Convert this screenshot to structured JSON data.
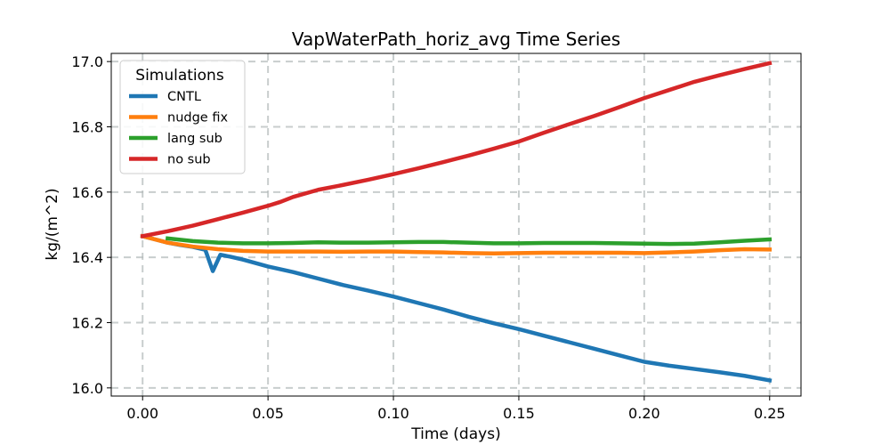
{
  "chart_data": {
    "type": "line",
    "title": "VapWaterPath_horiz_avg Time Series",
    "xlabel": "Time (days)",
    "ylabel": "kg/(m^2)",
    "xlim": [
      -0.0125,
      0.2625
    ],
    "ylim": [
      15.975,
      17.025
    ],
    "xticks": [
      0.0,
      0.05,
      0.1,
      0.15,
      0.2,
      0.25
    ],
    "xtick_labels": [
      "0.00",
      "0.05",
      "0.10",
      "0.15",
      "0.20",
      "0.25"
    ],
    "yticks": [
      16.0,
      16.2,
      16.4,
      16.6,
      16.8,
      17.0
    ],
    "ytick_labels": [
      "16.0",
      "16.2",
      "16.4",
      "16.6",
      "16.8",
      "17.0"
    ],
    "grid": true,
    "legend": {
      "title": "Simulations",
      "location": "upper-left"
    },
    "series": [
      {
        "name": "CNTL",
        "color": "#1f77b4",
        "x": [
          0.0,
          0.005,
          0.01,
          0.015,
          0.02,
          0.025,
          0.028,
          0.031,
          0.035,
          0.04,
          0.05,
          0.06,
          0.07,
          0.08,
          0.09,
          0.1,
          0.11,
          0.12,
          0.13,
          0.14,
          0.15,
          0.16,
          0.17,
          0.18,
          0.19,
          0.2,
          0.21,
          0.22,
          0.23,
          0.24,
          0.25
        ],
        "y": [
          16.465,
          16.455,
          16.445,
          16.438,
          16.432,
          16.423,
          16.358,
          16.408,
          16.402,
          16.393,
          16.372,
          16.355,
          16.335,
          16.315,
          16.298,
          16.28,
          16.26,
          16.24,
          16.218,
          16.198,
          16.18,
          16.16,
          16.14,
          16.12,
          16.1,
          16.08,
          16.068,
          16.058,
          16.048,
          16.037,
          16.023
        ]
      },
      {
        "name": "nudge fix",
        "color": "#ff7f0e",
        "x": [
          0.0,
          0.01,
          0.02,
          0.03,
          0.04,
          0.05,
          0.06,
          0.07,
          0.08,
          0.09,
          0.1,
          0.11,
          0.12,
          0.13,
          0.14,
          0.15,
          0.16,
          0.17,
          0.18,
          0.19,
          0.2,
          0.21,
          0.22,
          0.23,
          0.24,
          0.25
        ],
        "y": [
          16.465,
          16.445,
          16.433,
          16.425,
          16.42,
          16.418,
          16.418,
          16.418,
          16.417,
          16.418,
          16.418,
          16.416,
          16.415,
          16.413,
          16.412,
          16.413,
          16.414,
          16.414,
          16.414,
          16.414,
          16.413,
          16.415,
          16.418,
          16.422,
          16.425,
          16.424
        ]
      },
      {
        "name": "lang sub",
        "color": "#2ca02c",
        "x": [
          0.01,
          0.02,
          0.03,
          0.04,
          0.05,
          0.06,
          0.07,
          0.08,
          0.09,
          0.1,
          0.11,
          0.12,
          0.13,
          0.14,
          0.15,
          0.16,
          0.17,
          0.18,
          0.19,
          0.2,
          0.21,
          0.22,
          0.23,
          0.24,
          0.25
        ],
        "y": [
          16.458,
          16.45,
          16.445,
          16.443,
          16.443,
          16.444,
          16.446,
          16.445,
          16.445,
          16.446,
          16.447,
          16.447,
          16.445,
          16.443,
          16.443,
          16.444,
          16.444,
          16.444,
          16.443,
          16.442,
          16.441,
          16.442,
          16.446,
          16.451,
          16.455
        ]
      },
      {
        "name": "no sub",
        "color": "#d62728",
        "x": [
          0.0,
          0.01,
          0.02,
          0.03,
          0.04,
          0.05,
          0.055,
          0.06,
          0.07,
          0.08,
          0.09,
          0.1,
          0.11,
          0.12,
          0.13,
          0.14,
          0.15,
          0.16,
          0.17,
          0.18,
          0.19,
          0.2,
          0.21,
          0.22,
          0.23,
          0.24,
          0.25
        ],
        "y": [
          16.465,
          16.48,
          16.497,
          16.517,
          16.537,
          16.558,
          16.57,
          16.585,
          16.607,
          16.622,
          16.638,
          16.655,
          16.673,
          16.692,
          16.712,
          16.733,
          16.755,
          16.782,
          16.808,
          16.833,
          16.86,
          16.888,
          16.913,
          16.938,
          16.958,
          16.977,
          16.995
        ]
      }
    ]
  }
}
